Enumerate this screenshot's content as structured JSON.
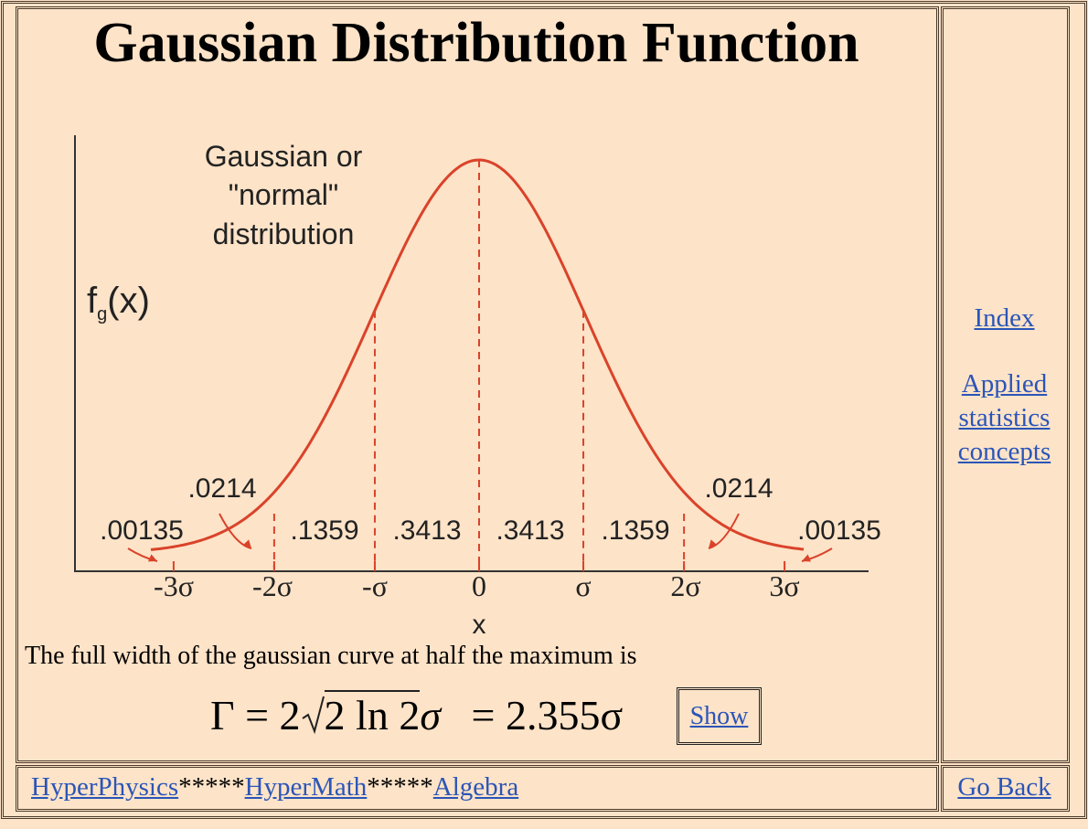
{
  "header": {
    "title": "Gaussian Distribution Function"
  },
  "figure": {
    "caption_lines": [
      "Gaussian or",
      "\"normal\"",
      "distribution"
    ],
    "y_axis_label": {
      "base": "f",
      "subscript": "g",
      "arg": "(x)"
    },
    "x_axis_label": "x",
    "x_ticks": [
      "-3σ",
      "-2σ",
      "-σ",
      "0",
      "σ",
      "2σ",
      "3σ"
    ],
    "areas": [
      ".00135",
      ".0214",
      ".1359",
      ".3413",
      ".3413",
      ".1359",
      ".0214",
      ".00135"
    ]
  },
  "body": {
    "text": "The full width of the gaussian curve at half the maximum is",
    "formula": {
      "lhs": "Γ = 2",
      "radicand": "2 ln 2",
      "sigma": "σ",
      "rhs": "= 2.355σ"
    },
    "button": "Show"
  },
  "sidebar": {
    "links": [
      "Index",
      "Applied statistics concepts"
    ]
  },
  "footer": {
    "links": [
      "HyperPhysics",
      "HyperMath",
      "Algebra"
    ],
    "separator": "*****",
    "back": "Go Back"
  }
}
